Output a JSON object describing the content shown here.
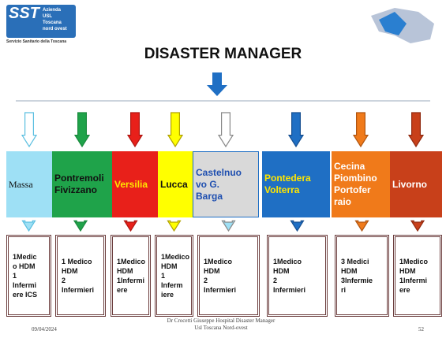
{
  "header": {
    "logo": "SST",
    "logo_lines": [
      "Azienda",
      "USL",
      "Toscana",
      "nord ovest"
    ],
    "logo_caption": "Servizio Sanitario della Toscana",
    "title": "DISASTER MANAGER"
  },
  "areas": [
    {
      "label": [
        "Massa"
      ],
      "staff": [
        "1Medic",
        "o HDM",
        "1",
        "Infermi",
        "ere ICS"
      ]
    },
    {
      "label": [
        "Pontremoli",
        "Fivizzano"
      ],
      "staff": [
        "1 Medico",
        "HDM",
        "2",
        "Infermieri"
      ]
    },
    {
      "label": [
        "Versilia"
      ],
      "staff": [
        "1Medico",
        "HDM",
        "1Infermi",
        "ere"
      ]
    },
    {
      "label": [
        "Lucca"
      ],
      "staff": [
        "1Medico",
        "HDM",
        "1",
        "Inferm",
        "iere"
      ]
    },
    {
      "label": [
        "Castelnuo",
        "vo G.",
        "Barga"
      ],
      "staff": [
        "1Medico",
        "HDM",
        "2",
        "Infermieri"
      ]
    },
    {
      "label": [
        "Pontedera",
        "Volterra"
      ],
      "staff": [
        "1Medico",
        "HDM",
        "2",
        "Infermieri"
      ]
    },
    {
      "label": [
        "Cecina",
        "Piombino",
        "Portofer",
        "raio"
      ],
      "staff": [
        "3 Medici",
        "HDM",
        "3Infermie",
        "ri"
      ]
    },
    {
      "label": [
        "Livorno"
      ],
      "staff": [
        "1Medico",
        "HDM",
        "1Infermi",
        "ere"
      ]
    }
  ],
  "footer": {
    "date": "09/04/2024",
    "author": [
      "Dr Crocetti Giuseppe Hospital Disaster Manager",
      "Usl Toscana Nord-ovest"
    ],
    "page": "52"
  }
}
